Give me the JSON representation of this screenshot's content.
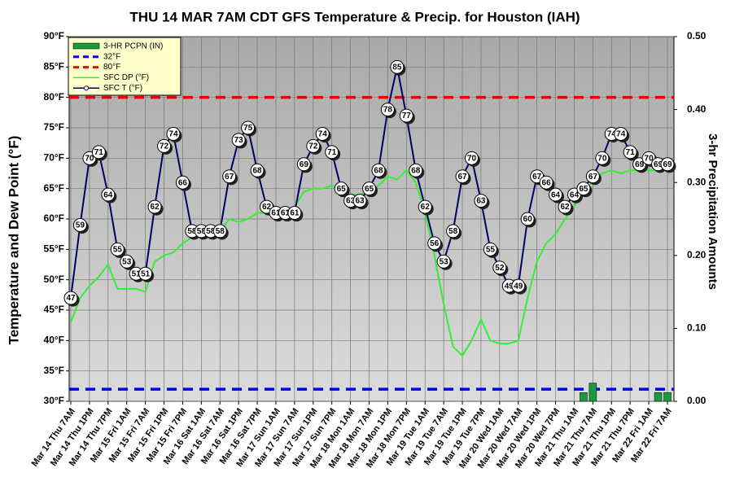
{
  "chart_data": {
    "type": "line",
    "title": "THU 14 MAR 7AM CDT GFS Temperature & Precip. for Houston (IAH)",
    "y_label": "Temperature and Dew Point (°F)",
    "y2_label": "3-hr Precipitation Amounts",
    "categories": [
      "Mar 14 Thu 7AM",
      null,
      "Mar 14 Thu 1PM",
      null,
      "Mar 14 Thu 7PM",
      null,
      "Mar 15 Fri 1AM",
      null,
      "Mar 15 Fri 7AM",
      null,
      "Mar 15 Fri 1PM",
      null,
      "Mar 15 Fri 7PM",
      null,
      "Mar 16 Sat 1AM",
      null,
      "Mar 16 Sat 7AM",
      null,
      "Mar 16 Sat 1PM",
      null,
      "Mar 16 Sat 7PM",
      null,
      "Mar 17 Sun 1AM",
      null,
      "Mar 17 Sun 7AM",
      null,
      "Mar 17 Sun 1PM",
      null,
      "Mar 17 Sun 7PM",
      null,
      "Mar 18 Mon 1AM",
      null,
      "Mar 18 Mon 7AM",
      null,
      "Mar 18 Mon 1PM",
      null,
      "Mar 18 Mon 7PM",
      null,
      "Mar 19 Tue 1AM",
      null,
      "Mar 19 Tue 7AM",
      null,
      "Mar 19 Tue 1PM",
      null,
      "Mar 19 Tue 7PM",
      null,
      "Mar 20 Wed 1AM",
      null,
      "Mar 20 Wed 7AM",
      null,
      "Mar 20 Wed 1PM",
      null,
      "Mar 20 Wed 7PM",
      null,
      "Mar 21 Thu 1AM",
      null,
      "Mar 21 Thu 7AM",
      null,
      "Mar 21 Thu 1PM",
      null,
      "Mar 21 Thu 7PM",
      null,
      "Mar 22 Fri 1AM",
      null,
      "Mar 22 Fri 7AM"
    ],
    "series": [
      {
        "name": "3-HR PCPN (IN)",
        "type": "bar",
        "axis": "y2",
        "color": "#1a9a3a",
        "values": [
          null,
          null,
          null,
          null,
          null,
          null,
          null,
          null,
          null,
          null,
          null,
          null,
          null,
          null,
          null,
          null,
          null,
          null,
          null,
          null,
          null,
          null,
          null,
          null,
          null,
          null,
          null,
          null,
          null,
          null,
          null,
          null,
          null,
          null,
          null,
          null,
          null,
          null,
          null,
          null,
          null,
          null,
          null,
          null,
          null,
          null,
          null,
          null,
          null,
          null,
          null,
          null,
          null,
          null,
          null,
          0.012,
          0.025,
          null,
          null,
          null,
          null,
          null,
          null,
          0.012,
          0.012
        ]
      },
      {
        "name": "SFC DP (°F)",
        "color": "#33ee33",
        "values": [
          43,
          47,
          49,
          50.5,
          52.5,
          48.5,
          48.5,
          48.5,
          48,
          53,
          54,
          54.5,
          56,
          57,
          58,
          58.5,
          58,
          60,
          59.5,
          60,
          61,
          61,
          61,
          61,
          62,
          64.5,
          65,
          65,
          65.5,
          64.5,
          64,
          64,
          64.5,
          65.5,
          67,
          66.5,
          68,
          66,
          61,
          54,
          46,
          39,
          37.5,
          40,
          43.5,
          40,
          39.5,
          39.5,
          40,
          47,
          53,
          56,
          57.5,
          60,
          62,
          65,
          66,
          67.5,
          68,
          67.5,
          68,
          68,
          68,
          68,
          68
        ]
      },
      {
        "name": "SFC T (°F)",
        "color": "#000066",
        "marker": true,
        "values": [
          47,
          59,
          70,
          71,
          64,
          55,
          53,
          51,
          51,
          62,
          72,
          74,
          66,
          58,
          58,
          58,
          58,
          67,
          73,
          75,
          68,
          62,
          61,
          61,
          61,
          69,
          72,
          74,
          71,
          65,
          63,
          63,
          65,
          68,
          78,
          85,
          77,
          68,
          62,
          56,
          53,
          58,
          67,
          70,
          63,
          55,
          52,
          49,
          49,
          60,
          67,
          66,
          64,
          62,
          64,
          65,
          67,
          70,
          74,
          74,
          71,
          69,
          70,
          69,
          69
        ]
      }
    ],
    "reference_lines": [
      {
        "name": "32°F",
        "value": 32,
        "color": "#0000ee"
      },
      {
        "name": "80°F",
        "value": 80,
        "color": "#ee0000"
      }
    ],
    "ylim": [
      30,
      90
    ],
    "yticks": [
      {
        "value": 30,
        "label": "30°F"
      },
      {
        "value": 35,
        "label": "35°F"
      },
      {
        "value": 40,
        "label": "40°F"
      },
      {
        "value": 45,
        "label": "45°F"
      },
      {
        "value": 50,
        "label": "50°F"
      },
      {
        "value": 55,
        "label": "55°F"
      },
      {
        "value": 60,
        "label": "60°F"
      },
      {
        "value": 65,
        "label": "65°F"
      },
      {
        "value": 70,
        "label": "70°F"
      },
      {
        "value": 75,
        "label": "75°F"
      },
      {
        "value": 80,
        "label": "80°F"
      },
      {
        "value": 85,
        "label": "85°F"
      },
      {
        "value": 90,
        "label": "90°F"
      }
    ],
    "y2lim": [
      0,
      0.5
    ],
    "y2ticks": [
      {
        "value": 0,
        "label": "0.00"
      },
      {
        "value": 0.1,
        "label": "0.10"
      },
      {
        "value": 0.2,
        "label": "0.20"
      },
      {
        "value": 0.3,
        "label": "0.30"
      },
      {
        "value": 0.4,
        "label": "0.40"
      },
      {
        "value": 0.5,
        "label": "0.50"
      }
    ],
    "grid": true
  }
}
